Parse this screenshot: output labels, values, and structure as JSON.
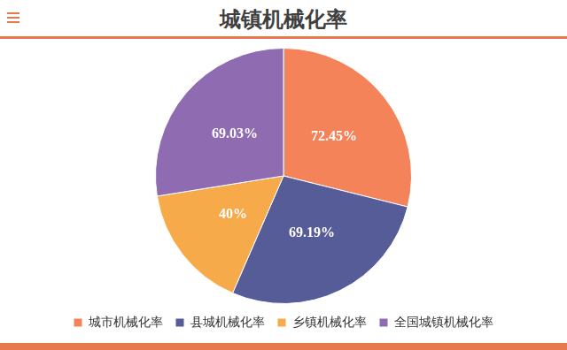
{
  "chart_data": {
    "type": "pie",
    "title": "城镇机械化率",
    "categories": [
      "城市机械化率",
      "县城机械化率",
      "乡镇机械化率",
      "全国城镇机械化率"
    ],
    "values": [
      72.45,
      69.19,
      40,
      69.03
    ],
    "value_labels": [
      "72.45%",
      "69.19%",
      "40%",
      "69.03%"
    ],
    "colors": [
      "#f4835a",
      "#565c98",
      "#f6aa4a",
      "#8f6cb1"
    ],
    "legend": "bottom",
    "data_labels": true
  }
}
